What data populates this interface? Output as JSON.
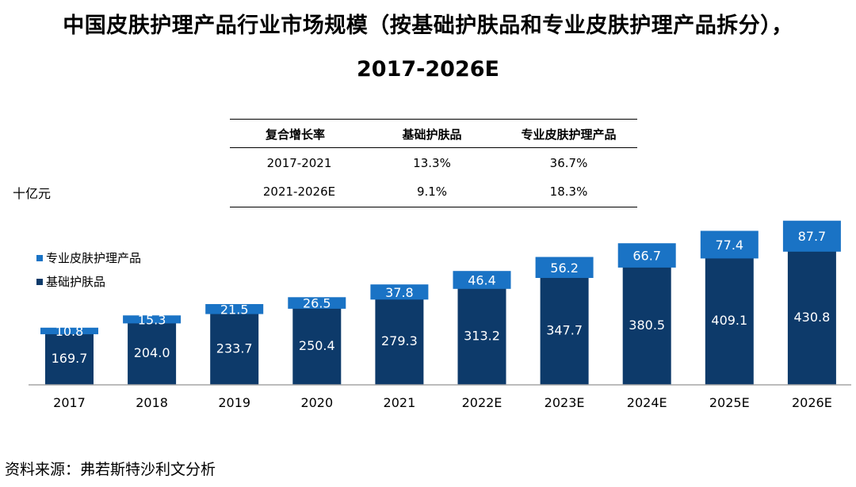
{
  "title": {
    "line1": "中国皮肤护理产品行业市场规模（按基础护肤品和专业皮肤护理产品拆分），",
    "line2": "2017-2026E"
  },
  "cagr_table": {
    "headers": [
      "复合增长率",
      "基础护肤品",
      "专业皮肤护理产品"
    ],
    "rows": [
      [
        "2017-2021",
        "13.3%",
        "36.7%"
      ],
      [
        "2021-2026E",
        "9.1%",
        "18.3%"
      ]
    ]
  },
  "unit": "十亿元",
  "legend": [
    "专业皮肤护理产品",
    "基础护肤品"
  ],
  "colors": {
    "basic": "#0d3a6a",
    "professional": "#1a73c5",
    "axis": "#a6a6a6"
  },
  "source": "资料来源：弗若斯特沙利文分析",
  "chart_data": {
    "type": "bar",
    "stacked": true,
    "categories": [
      "2017",
      "2018",
      "2019",
      "2020",
      "2021",
      "2022E",
      "2023E",
      "2024E",
      "2025E",
      "2026E"
    ],
    "series": [
      {
        "name": "基础护肤品",
        "values": [
          169.7,
          204.0,
          233.7,
          250.4,
          279.3,
          313.2,
          347.7,
          380.5,
          409.1,
          430.8
        ],
        "labels": [
          "169.7",
          "204.0",
          "233.7",
          "250.4",
          "279.3",
          "313.2",
          "347.7",
          "380.5",
          "409.1",
          "430.8"
        ]
      },
      {
        "name": "专业皮肤护理产品",
        "values": [
          10.8,
          15.3,
          21.5,
          26.5,
          37.8,
          46.4,
          56.2,
          66.7,
          77.4,
          87.7
        ],
        "labels": [
          "10.8",
          "15.3",
          "21.5",
          "26.5",
          "37.8",
          "46.4",
          "56.2",
          "66.7",
          "77.4",
          "87.7"
        ]
      }
    ],
    "ylabel": "十亿元",
    "legend_position": "left",
    "grid": false
  }
}
